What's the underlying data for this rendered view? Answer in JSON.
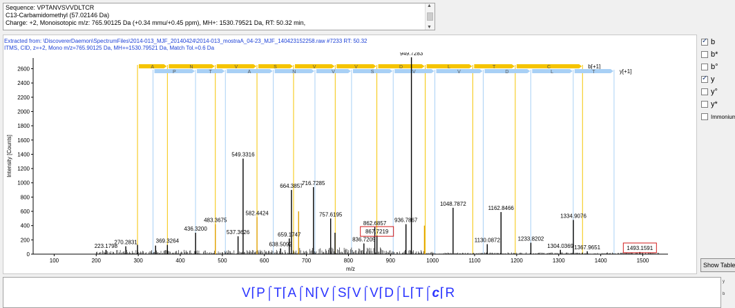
{
  "header": {
    "sequence": "Sequence: VPTANVSVVDLTCR",
    "modification": "C13-Carbamidomethyl (57.02146 Da)",
    "charge": "Charge: +2,   Monoisotopic m/z: 765.90125 Da (+0.34 mmu/+0.45 ppm),   MH+: 1530.79521 Da,   RT: 50.32 min,"
  },
  "chart_info": {
    "line1": "Extracted from: \\DiscovererDaemon\\SpectrumFiles\\2014-013_MJF_20140424\\2014-013_mostraA_04-23_MJF_140423152258.raw  #7233  RT: 50.32",
    "line2": "ITMS, CID, z=+2, Mono m/z=765.90125 Da, MH+=1530.79521 Da, Match Tol.=0.6 Da"
  },
  "chart_data": {
    "type": "bar",
    "xlabel": "m/z",
    "ylabel": "Intensity [Counts]",
    "xlim": [
      50,
      1560
    ],
    "ylim": [
      0,
      2750
    ],
    "xticks": [
      100,
      200,
      300,
      400,
      500,
      600,
      700,
      800,
      900,
      1000,
      1100,
      1200,
      1300,
      1400,
      1500
    ],
    "yticks": [
      0,
      200,
      400,
      600,
      800,
      1000,
      1200,
      1400,
      1600,
      1800,
      2000,
      2200,
      2400,
      2600
    ],
    "peaks": [
      {
        "mz": 223.1798,
        "intensity": 60,
        "label": "223.1798",
        "color": "#000"
      },
      {
        "mz": 270.2831,
        "intensity": 110,
        "label": "270.2831",
        "color": "#000"
      },
      {
        "mz": 298.2,
        "intensity": 130,
        "label": "",
        "color": "#000"
      },
      {
        "mz": 341.2,
        "intensity": 120,
        "label": "",
        "color": "#000"
      },
      {
        "mz": 369.3264,
        "intensity": 130,
        "label": "369.3264",
        "color": "#000"
      },
      {
        "mz": 436.32,
        "intensity": 300,
        "label": "436.3200",
        "color": "#000"
      },
      {
        "mz": 483.3675,
        "intensity": 420,
        "label": "483.3675",
        "color": "#e0a000"
      },
      {
        "mz": 537.3626,
        "intensity": 250,
        "label": "537.3626",
        "color": "#000"
      },
      {
        "mz": 549.3316,
        "intensity": 1340,
        "label": "549.3316",
        "color": "#000"
      },
      {
        "mz": 582.4424,
        "intensity": 520,
        "label": "582.4424",
        "color": "#e0a000"
      },
      {
        "mz": 638.5092,
        "intensity": 80,
        "label": "638.5092",
        "color": "#000"
      },
      {
        "mz": 659.1747,
        "intensity": 220,
        "label": "659.1747",
        "color": "#000"
      },
      {
        "mz": 664.3857,
        "intensity": 900,
        "label": "664.3857",
        "color": "#000"
      },
      {
        "mz": 681.4,
        "intensity": 600,
        "label": "",
        "color": "#e0a000"
      },
      {
        "mz": 716.7285,
        "intensity": 940,
        "label": "716.7285",
        "color": "#000"
      },
      {
        "mz": 757.6195,
        "intensity": 500,
        "label": "757.6195",
        "color": "#000"
      },
      {
        "mz": 768.0,
        "intensity": 300,
        "label": "",
        "color": "#000"
      },
      {
        "mz": 836.7205,
        "intensity": 150,
        "label": "836.7205",
        "color": "#000"
      },
      {
        "mz": 862.6857,
        "intensity": 380,
        "label": "862.6857",
        "color": "#000"
      },
      {
        "mz": 867.7219,
        "intensity": 260,
        "label": "867.7219",
        "color": "#000"
      },
      {
        "mz": 936.7867,
        "intensity": 420,
        "label": "936.7867",
        "color": "#000"
      },
      {
        "mz": 949.7283,
        "intensity": 2760,
        "label": "949.7283",
        "color": "#000"
      },
      {
        "mz": 980.7,
        "intensity": 400,
        "label": "",
        "color": "#e0a000"
      },
      {
        "mz": 1048.7872,
        "intensity": 650,
        "label": "1048.7872",
        "color": "#000"
      },
      {
        "mz": 1130.0872,
        "intensity": 140,
        "label": "1130.0872",
        "color": "#000"
      },
      {
        "mz": 1162.8466,
        "intensity": 590,
        "label": "1162.8466",
        "color": "#000"
      },
      {
        "mz": 1233.8202,
        "intensity": 160,
        "label": "1233.8202",
        "color": "#000"
      },
      {
        "mz": 1304.0369,
        "intensity": 60,
        "label": "1304.0369",
        "color": "#000"
      },
      {
        "mz": 1334.9076,
        "intensity": 480,
        "label": "1334.9076",
        "color": "#000"
      },
      {
        "mz": 1367.9651,
        "intensity": 40,
        "label": "1367.9651",
        "color": "#000"
      },
      {
        "mz": 1493.1591,
        "intensity": 30,
        "label": "1493.1591",
        "color": "#000"
      }
    ],
    "boxed_labels": [
      "867.7219",
      "1493.1591"
    ],
    "b_ions": {
      "label": "b[+1]",
      "residues": [
        "A",
        "N",
        "V",
        "S",
        "V",
        "V",
        "D",
        "L",
        "T",
        "C"
      ],
      "mz": [
        298.2,
        369.3,
        483.3,
        582.4,
        669.4,
        768.5,
        867.5,
        982.5,
        1095.6,
        1196.7,
        1356.7
      ],
      "color": "#f5c400"
    },
    "y_ions": {
      "label": "y[+1]",
      "residues": [
        "T",
        "L",
        "D",
        "V",
        "V",
        "S",
        "V",
        "N",
        "A",
        "T",
        "P"
      ],
      "mz": [
        1431.7,
        1334.6,
        1233.6,
        1120.5,
        1005.5,
        906.4,
        807.3,
        720.3,
        621.2,
        507.2,
        436.2,
        335.1
      ],
      "color": "#a8d0f5"
    }
  },
  "ion_checkboxes": [
    {
      "label": "b",
      "checked": true
    },
    {
      "label": "b*",
      "checked": false
    },
    {
      "label": "b°",
      "checked": false
    },
    {
      "label": "y",
      "checked": true
    },
    {
      "label": "y°",
      "checked": false
    },
    {
      "label": "y*",
      "checked": false
    },
    {
      "label": "Immonium",
      "checked": false
    }
  ],
  "show_table_label": "Show Table",
  "sequence_residues": [
    "V",
    "P",
    "T",
    "A",
    "N",
    "V",
    "S",
    "V",
    "V",
    "D",
    "L",
    "T",
    "c",
    "R"
  ],
  "side_letters": [
    "y",
    "b"
  ]
}
